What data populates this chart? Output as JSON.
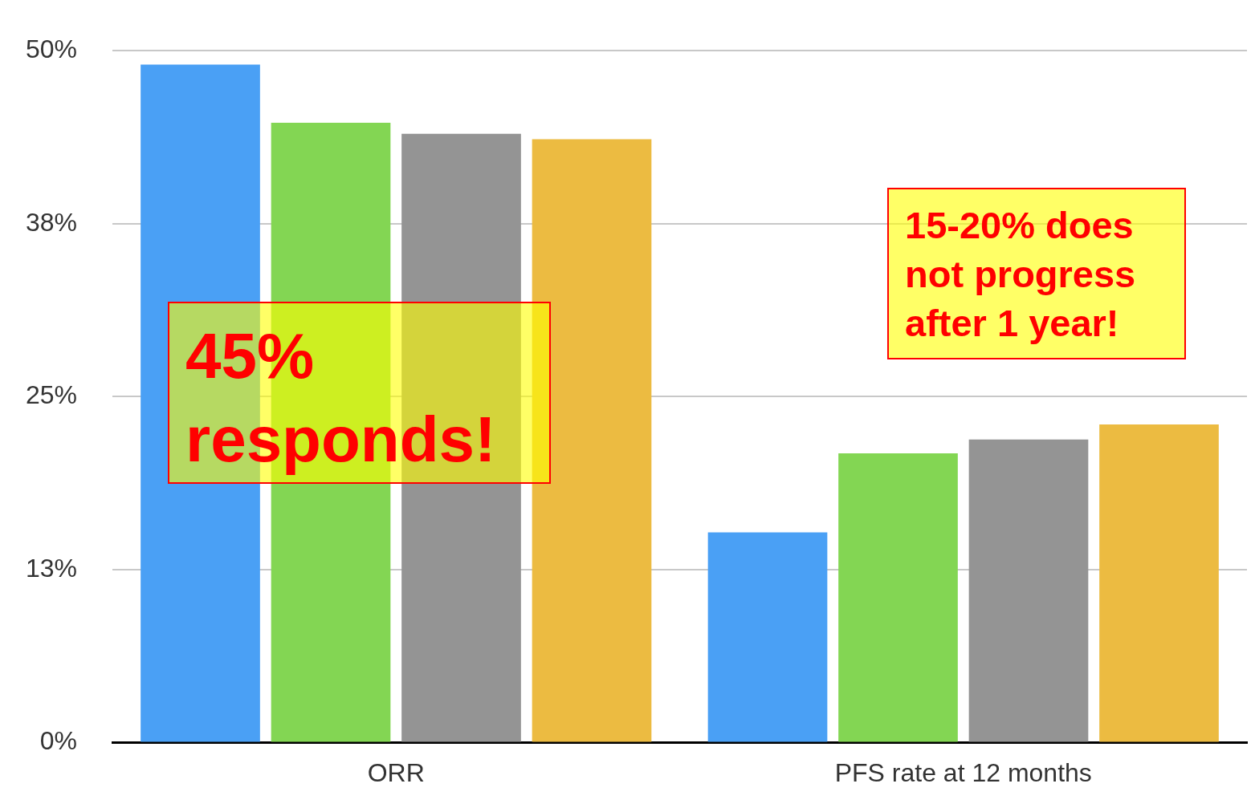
{
  "chart_data": {
    "type": "bar",
    "categories": [
      "ORR",
      "PFS rate at 12 months"
    ],
    "series": [
      {
        "color": "#4aa0f5",
        "values": [
          49,
          15.2
        ]
      },
      {
        "color": "#83d653",
        "values": [
          44.8,
          20.9
        ]
      },
      {
        "color": "#949494",
        "values": [
          44,
          21.9
        ]
      },
      {
        "color": "#ecbb41",
        "values": [
          43.6,
          23
        ]
      }
    ],
    "ylim": [
      0,
      50
    ],
    "yticks": [
      {
        "value": 0,
        "label": "0%"
      },
      {
        "value": 12.5,
        "label": "13%"
      },
      {
        "value": 25,
        "label": "25%"
      },
      {
        "value": 37.5,
        "label": "38%"
      },
      {
        "value": 50,
        "label": "50%"
      }
    ],
    "grid": "y",
    "legend": false,
    "annotations": [
      "45% responds!",
      "15-20% does not progress after 1 year!"
    ]
  }
}
